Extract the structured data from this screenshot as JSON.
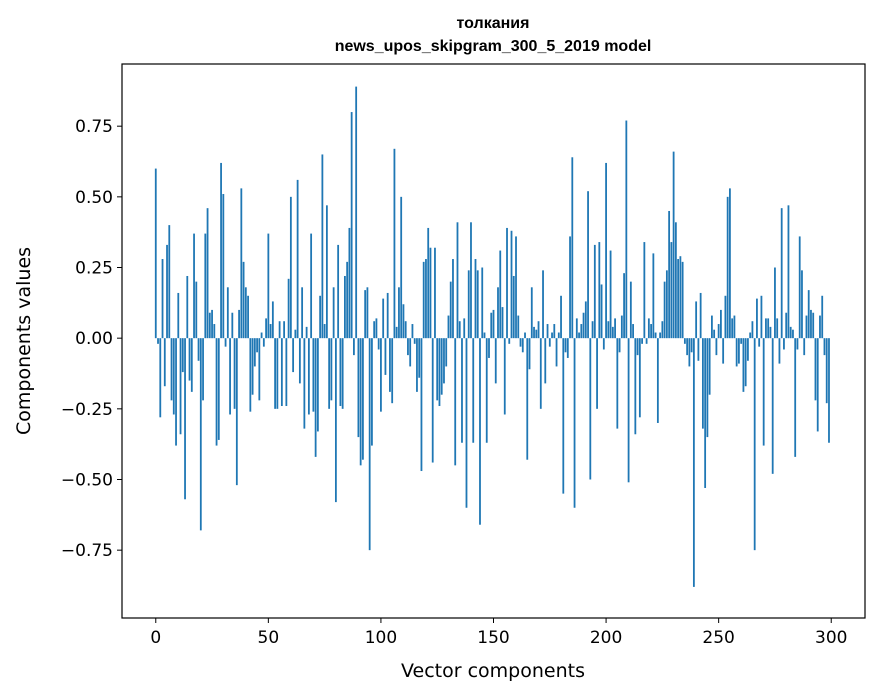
{
  "chart_data": {
    "type": "bar",
    "title_line1": "толкания",
    "title_line2": "news_upos_skipgram_300_5_2019 model",
    "xlabel": "Vector components",
    "ylabel": "Components values",
    "xlim": [
      -15,
      315
    ],
    "ylim": [
      -0.99,
      0.97
    ],
    "xticks": [
      0,
      50,
      100,
      150,
      200,
      250,
      300
    ],
    "xtick_labels": [
      "0",
      "50",
      "100",
      "150",
      "200",
      "250",
      "300"
    ],
    "yticks": [
      -0.75,
      -0.5,
      -0.25,
      0.0,
      0.25,
      0.5,
      0.75
    ],
    "ytick_labels": [
      "−0.75",
      "−0.50",
      "−0.25",
      "0.00",
      "0.25",
      "0.50",
      "0.75"
    ],
    "color": "#1f77b4",
    "values": [
      0.6,
      -0.02,
      -0.28,
      0.28,
      -0.17,
      0.33,
      0.4,
      -0.22,
      -0.27,
      -0.38,
      0.16,
      -0.34,
      -0.12,
      -0.57,
      0.22,
      -0.15,
      -0.19,
      0.37,
      0.2,
      -0.08,
      -0.68,
      -0.22,
      0.37,
      0.46,
      0.09,
      0.1,
      0.05,
      -0.38,
      -0.36,
      0.62,
      0.51,
      -0.03,
      0.18,
      -0.27,
      0.09,
      -0.25,
      -0.52,
      0.1,
      0.53,
      0.27,
      0.18,
      0.15,
      -0.26,
      -0.2,
      -0.1,
      -0.05,
      -0.22,
      0.02,
      -0.03,
      0.07,
      0.37,
      0.05,
      0.13,
      -0.25,
      -0.25,
      0.06,
      -0.24,
      0.06,
      -0.24,
      0.21,
      0.5,
      -0.12,
      0.03,
      0.56,
      -0.16,
      0.18,
      -0.32,
      0.04,
      -0.27,
      0.37,
      -0.26,
      -0.42,
      -0.33,
      0.15,
      0.65,
      0.05,
      0.47,
      -0.25,
      -0.22,
      0.18,
      -0.58,
      0.33,
      -0.24,
      -0.25,
      0.22,
      0.27,
      0.39,
      0.8,
      -0.06,
      0.89,
      -0.35,
      -0.45,
      -0.43,
      0.17,
      0.18,
      -0.75,
      -0.38,
      0.06,
      0.07,
      -0.04,
      -0.26,
      0.14,
      -0.13,
      0.16,
      -0.19,
      -0.23,
      0.67,
      0.04,
      0.18,
      0.5,
      0.12,
      0.06,
      -0.06,
      -0.1,
      0.05,
      -0.02,
      -0.19,
      -0.14,
      -0.47,
      0.27,
      0.28,
      0.39,
      0.32,
      -0.44,
      0.32,
      -0.22,
      -0.24,
      -0.2,
      -0.16,
      -0.1,
      0.08,
      0.2,
      0.28,
      -0.45,
      0.41,
      0.06,
      -0.37,
      0.07,
      -0.6,
      0.24,
      0.41,
      -0.37,
      0.28,
      0.24,
      -0.66,
      0.25,
      0.02,
      -0.37,
      -0.07,
      0.09,
      0.1,
      -0.16,
      0.18,
      0.31,
      0.11,
      -0.27,
      0.39,
      -0.02,
      0.38,
      0.22,
      0.36,
      0.08,
      -0.03,
      -0.05,
      0.02,
      -0.43,
      -0.11,
      0.18,
      0.04,
      0.03,
      0.06,
      -0.25,
      0.24,
      -0.16,
      0.05,
      -0.03,
      0.02,
      0.05,
      -0.1,
      0.02,
      0.15,
      -0.55,
      -0.05,
      -0.07,
      0.36,
      0.64,
      -0.6,
      0.07,
      0.02,
      0.05,
      0.09,
      0.13,
      0.52,
      -0.5,
      0.06,
      0.33,
      -0.25,
      0.34,
      0.19,
      -0.04,
      0.62,
      0.06,
      0.31,
      0.04,
      0.07,
      -0.32,
      -0.05,
      0.08,
      0.23,
      0.77,
      -0.51,
      0.2,
      0.05,
      -0.34,
      -0.06,
      -0.28,
      -0.02,
      0.34,
      -0.02,
      0.07,
      0.05,
      0.3,
      0.02,
      -0.3,
      0.02,
      0.06,
      0.2,
      0.24,
      0.45,
      0.34,
      0.66,
      0.41,
      0.28,
      0.29,
      0.27,
      -0.02,
      -0.06,
      -0.1,
      -0.05,
      -0.88,
      0.13,
      -0.08,
      0.16,
      -0.32,
      -0.53,
      -0.35,
      -0.2,
      0.08,
      0.03,
      -0.06,
      0.05,
      0.1,
      -0.09,
      0.15,
      0.5,
      0.53,
      0.07,
      0.08,
      -0.1,
      -0.09,
      -0.02,
      -0.19,
      -0.17,
      -0.08,
      0.02,
      0.06,
      -0.75,
      0.14,
      -0.03,
      0.15,
      -0.38,
      0.07,
      0.07,
      0.04,
      -0.48,
      0.25,
      0.07,
      -0.09,
      0.46,
      -0.04,
      0.09,
      0.47,
      0.04,
      0.03,
      -0.42,
      -0.04,
      0.36,
      0.24,
      -0.06,
      0.08,
      0.17,
      0.1,
      0.09,
      -0.22,
      -0.33,
      0.08,
      0.15,
      -0.06,
      -0.23,
      -0.37
    ]
  }
}
